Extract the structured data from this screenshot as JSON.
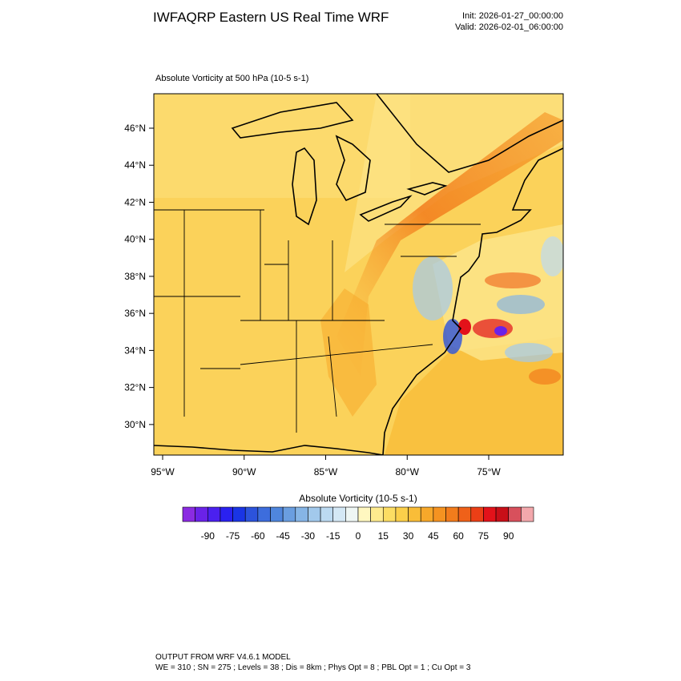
{
  "header": {
    "title": "IWFAQRP Eastern US Real Time WRF",
    "init": "Init: 2026-01-27_00:00:00",
    "valid": "Valid: 2026-02-01_06:00:00"
  },
  "map": {
    "subtitle": "Absolute Vorticity at 500 hPa   (10-5 s-1)",
    "xlim": [
      -95.54,
      -70.43
    ],
    "ylim": [
      28.35,
      47.86
    ],
    "xticks": [
      {
        "value": -95,
        "label": "95°W"
      },
      {
        "value": -90,
        "label": "90°W"
      },
      {
        "value": -85,
        "label": "85°W"
      },
      {
        "value": -80,
        "label": "80°W"
      },
      {
        "value": -75,
        "label": "75°W"
      }
    ],
    "yticks": [
      {
        "value": 30,
        "label": "30°N"
      },
      {
        "value": 32,
        "label": "32°N"
      },
      {
        "value": 34,
        "label": "34°N"
      },
      {
        "value": 36,
        "label": "36°N"
      },
      {
        "value": 38,
        "label": "38°N"
      },
      {
        "value": 40,
        "label": "40°N"
      },
      {
        "value": 42,
        "label": "42°N"
      },
      {
        "value": 44,
        "label": "44°N"
      },
      {
        "value": 46,
        "label": "46°N"
      }
    ]
  },
  "colorbar": {
    "title": "Absolute Vorticity  (10-5 s-1)",
    "range": [
      -105,
      105
    ],
    "ticks": [
      -90,
      -75,
      -60,
      -45,
      -30,
      -15,
      0,
      15,
      30,
      45,
      60,
      75,
      90
    ],
    "colors": [
      "#8b2be2",
      "#6a22e8",
      "#4b20ef",
      "#2a21f0",
      "#1a35e5",
      "#2c53dc",
      "#3d6ddd",
      "#4f86dd",
      "#6a9ee0",
      "#86b5e6",
      "#a2c9ec",
      "#bcdaf1",
      "#d4e8f5",
      "#eef6f4",
      "#fff7c0",
      "#feeb8e",
      "#fcdd63",
      "#fbcf4a",
      "#f9bd38",
      "#f7a82a",
      "#f59321",
      "#f27c1c",
      "#ef6119",
      "#eb3f16",
      "#e3121a",
      "#c80f18",
      "#d8505c",
      "#f3a8ac"
    ]
  },
  "footer": {
    "line1": "OUTPUT FROM WRF V4.6.1 MODEL",
    "line2": "WE = 310 ; SN = 275 ; Levels = 38 ; Dis = 8km ; Phys Opt = 8 ; PBL Opt = 1 ; Cu Opt = 3"
  }
}
